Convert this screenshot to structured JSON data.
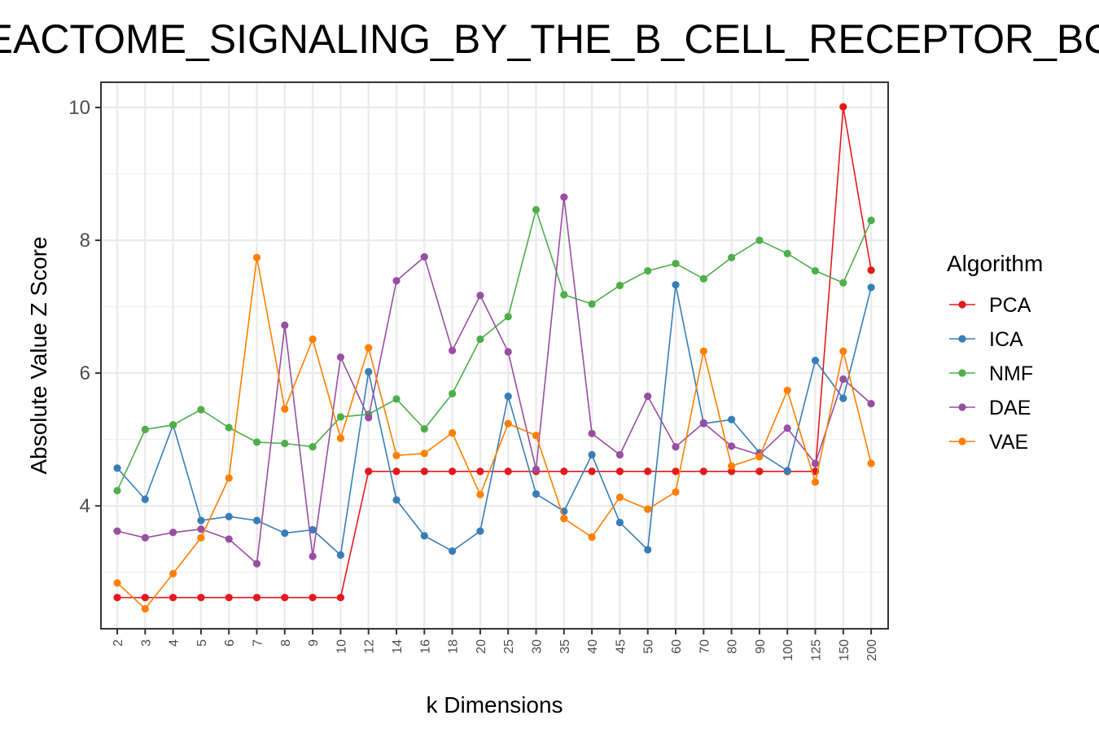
{
  "chart_data": {
    "type": "line",
    "title": "REACTOME_SIGNALING_BY_THE_B_CELL_RECEPTOR_BCR",
    "xlabel": "k Dimensions",
    "ylabel": "Absolute Value Z Score",
    "categories": [
      "2",
      "3",
      "4",
      "5",
      "6",
      "7",
      "8",
      "9",
      "10",
      "12",
      "14",
      "16",
      "18",
      "20",
      "25",
      "30",
      "35",
      "40",
      "45",
      "50",
      "60",
      "70",
      "80",
      "90",
      "100",
      "125",
      "150",
      "200"
    ],
    "ylim": [
      2.15,
      10.38
    ],
    "yticks": [
      4,
      6,
      8,
      10
    ],
    "grid": true,
    "legend": {
      "title": "Algorithm",
      "position": "right"
    },
    "series": [
      {
        "name": "PCA",
        "color": "#e41a1c",
        "values": [
          2.62,
          2.62,
          2.62,
          2.62,
          2.62,
          2.62,
          2.62,
          2.62,
          2.62,
          4.52,
          4.52,
          4.52,
          4.52,
          4.52,
          4.52,
          4.52,
          4.52,
          4.52,
          4.52,
          4.52,
          4.52,
          4.52,
          4.52,
          4.52,
          4.52,
          4.52,
          10.01,
          7.55
        ]
      },
      {
        "name": "ICA",
        "color": "#377eb8",
        "values": [
          4.57,
          4.1,
          5.22,
          3.78,
          3.84,
          3.78,
          3.59,
          3.64,
          3.26,
          6.02,
          4.09,
          3.55,
          3.32,
          3.62,
          5.65,
          4.18,
          3.92,
          4.77,
          3.75,
          3.34,
          7.33,
          5.24,
          5.3,
          4.8,
          4.53,
          6.19,
          5.62,
          7.29
        ]
      },
      {
        "name": "NMF",
        "color": "#4daf4a",
        "values": [
          4.23,
          5.15,
          5.22,
          5.45,
          5.18,
          4.96,
          4.94,
          4.89,
          5.34,
          5.38,
          5.61,
          5.16,
          5.69,
          6.51,
          6.85,
          8.46,
          7.18,
          7.04,
          7.32,
          7.54,
          7.65,
          7.42,
          7.74,
          8.0,
          7.8,
          7.54,
          7.36,
          8.3
        ]
      },
      {
        "name": "DAE",
        "color": "#984ea3",
        "values": [
          3.62,
          3.52,
          3.6,
          3.65,
          3.5,
          3.13,
          6.72,
          3.24,
          6.24,
          5.33,
          7.39,
          7.75,
          6.34,
          7.17,
          6.32,
          4.55,
          8.65,
          5.09,
          4.77,
          5.65,
          4.89,
          5.25,
          4.9,
          4.77,
          5.17,
          4.64,
          5.91,
          5.54
        ]
      },
      {
        "name": "VAE",
        "color": "#ff7f00",
        "values": [
          2.84,
          2.45,
          2.98,
          3.52,
          4.42,
          7.74,
          5.46,
          6.51,
          5.02,
          6.38,
          4.76,
          4.79,
          5.1,
          4.17,
          5.24,
          5.06,
          3.81,
          3.53,
          4.13,
          3.95,
          4.21,
          6.33,
          4.6,
          4.74,
          5.74,
          4.36,
          6.33,
          4.64
        ]
      }
    ]
  }
}
